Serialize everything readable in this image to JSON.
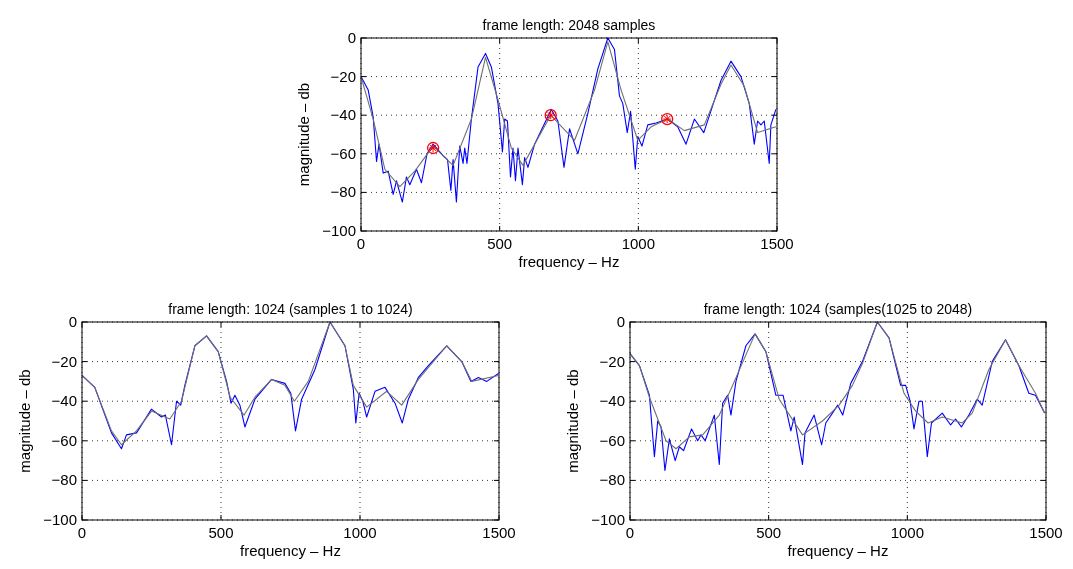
{
  "chart_data": [
    {
      "type": "line",
      "title": "frame length: 2048 samples",
      "xlabel": "frequency – Hz",
      "ylabel": "magnitude – db",
      "xlim": [
        0,
        1500
      ],
      "ylim": [
        -100,
        0
      ],
      "xticks": [
        0,
        500,
        1000,
        1500
      ],
      "yticks": [
        -100,
        -80,
        -60,
        -40,
        -20,
        0
      ],
      "grid": true,
      "series": [
        {
          "color": "#0000ff",
          "x": [
            0,
            26,
            44,
            56,
            65,
            80,
            98,
            116,
            128,
            149,
            164,
            176,
            200,
            218,
            238,
            260,
            296,
            312,
            324,
            332,
            344,
            356,
            368,
            374,
            382,
            398,
            422,
            449,
            470,
            494,
            510,
            518,
            528,
            539,
            548,
            557,
            566,
            582,
            590,
            602,
            626,
            686,
            710,
            732,
            752,
            782,
            818,
            854,
            890,
            914,
            932,
            944,
            960,
            972,
            989,
            998,
            1013,
            1034,
            1064,
            1106,
            1142,
            1172,
            1202,
            1236,
            1268,
            1298,
            1334,
            1370,
            1400,
            1418,
            1430,
            1442,
            1454,
            1472,
            1478,
            1496
          ],
          "values": [
            -20,
            -27,
            -41,
            -64,
            -55,
            -70,
            -69,
            -81,
            -74,
            -85,
            -72,
            -76,
            -68,
            -75,
            -60,
            -55,
            -61,
            -63,
            -79,
            -63,
            -85,
            -56,
            -65,
            -57,
            -65,
            -42,
            -15,
            -8,
            -15,
            -34,
            -59,
            -42,
            -43,
            -72,
            -57,
            -74,
            -57,
            -76,
            -62,
            -67,
            -55,
            -37,
            -43,
            -67,
            -47,
            -60,
            -39,
            -16,
            0,
            -6,
            -30,
            -34,
            -49,
            -38,
            -68,
            -51,
            -56,
            -45,
            -44,
            -42,
            -46,
            -55,
            -42,
            -49,
            -35,
            -22,
            -12,
            -20,
            -34,
            -55,
            -43,
            -45,
            -43,
            -65,
            -45,
            -37
          ]
        },
        {
          "color": "#707070",
          "x": [
            0,
            44,
            86,
            140,
            194,
            260,
            332,
            398,
            449,
            494,
            542,
            584,
            684,
            770,
            842,
            890,
            938,
            998,
            1046,
            1106,
            1166,
            1238,
            1298,
            1334,
            1382,
            1430,
            1496
          ],
          "values": [
            -20,
            -42,
            -68,
            -77,
            -69,
            -56,
            -66,
            -42,
            -10,
            -32,
            -57,
            -66,
            -40,
            -53,
            -27,
            -2,
            -27,
            -53,
            -46,
            -42,
            -48,
            -45,
            -24,
            -14,
            -25,
            -49,
            -46
          ]
        },
        {
          "type": "scatter",
          "color": "#ff0000",
          "marker": "circle",
          "x": [
            260,
            684,
            1104
          ],
          "values": [
            -57,
            -40,
            -42
          ]
        }
      ]
    },
    {
      "type": "line",
      "title": "frame length: 1024 (samples 1 to 1024)",
      "xlabel": "frequency – Hz",
      "ylabel": "magnitude – db",
      "xlim": [
        0,
        1500
      ],
      "ylim": [
        -100,
        0
      ],
      "xticks": [
        0,
        500,
        1000,
        1500
      ],
      "yticks": [
        -100,
        -80,
        -60,
        -40,
        -20,
        0
      ],
      "grid": true,
      "series": [
        {
          "color": "#0000ff",
          "x": [
            0,
            46,
            106,
            142,
            160,
            196,
            250,
            286,
            300,
            322,
            340,
            355,
            370,
            406,
            448,
            490,
            520,
            536,
            550,
            568,
            586,
            622,
            682,
            730,
            751,
            768,
            790,
            838,
            892,
            946,
            976,
            985,
            997,
            1010,
            1024,
            1054,
            1090,
            1126,
            1152,
            1174,
            1210,
            1246,
            1312,
            1366,
            1399,
            1426,
            1456,
            1498
          ],
          "values": [
            -27,
            -33,
            -56,
            -64,
            -57,
            -56,
            -44,
            -48,
            -47,
            -62,
            -40,
            -42,
            -32,
            -12,
            -7,
            -15,
            -30,
            -41,
            -37,
            -42,
            -53,
            -39,
            -29,
            -31,
            -36,
            -55,
            -39,
            -24,
            0,
            -12,
            -34,
            -51,
            -36,
            -40,
            -48,
            -35,
            -33,
            -41,
            -51,
            -39,
            -28,
            -22,
            -12,
            -20,
            -30,
            -28,
            -30,
            -26
          ]
        },
        {
          "color": "#707070",
          "x": [
            0,
            46,
            106,
            142,
            196,
            250,
            316,
            358,
            406,
            448,
            490,
            533,
            583,
            622,
            682,
            730,
            764,
            814,
            892,
            946,
            976,
            1024,
            1096,
            1150,
            1210,
            1312,
            1366,
            1402,
            1498
          ],
          "values": [
            -27,
            -33,
            -55,
            -62,
            -55,
            -45,
            -49,
            -40,
            -12,
            -7,
            -15,
            -38,
            -47,
            -38,
            -29,
            -32,
            -40,
            -30,
            0,
            -12,
            -32,
            -43,
            -35,
            -42,
            -29,
            -12,
            -20,
            -30,
            -27
          ]
        }
      ]
    },
    {
      "type": "line",
      "title": "frame length: 1024 (samples(1025 to 2048)",
      "xlabel": "frequency – Hz",
      "ylabel": "magnitude – db",
      "xlim": [
        0,
        1500
      ],
      "ylim": [
        -100,
        0
      ],
      "xticks": [
        0,
        500,
        1000,
        1500
      ],
      "yticks": [
        -100,
        -80,
        -60,
        -40,
        -20,
        0
      ],
      "grid": true,
      "series": [
        {
          "color": "#0000ff",
          "x": [
            0,
            34,
            70,
            88,
            100,
            112,
            126,
            142,
            163,
            178,
            193,
            222,
            244,
            256,
            271,
            304,
            322,
            334,
            352,
            364,
            382,
            418,
            451,
            490,
            526,
            552,
            580,
            592,
            622,
            631,
            664,
            691,
            706,
            730,
            749,
            767,
            796,
            838,
            892,
            934,
            976,
            994,
            1010,
            1024,
            1042,
            1054,
            1072,
            1087,
            1126,
            1156,
            1174,
            1195,
            1222,
            1252,
            1270,
            1306,
            1354,
            1402,
            1438,
            1462,
            1495
          ],
          "values": [
            -16,
            -22,
            -37,
            -68,
            -50,
            -53,
            -75,
            -59,
            -70,
            -63,
            -65,
            -54,
            -60,
            -57,
            -60,
            -47,
            -72,
            -41,
            -37,
            -47,
            -30,
            -12,
            -6,
            -15,
            -37,
            -37,
            -55,
            -48,
            -72,
            -56,
            -47,
            -62,
            -51,
            -46,
            -42,
            -47,
            -31,
            -20,
            0,
            -8,
            -32,
            -32,
            -40,
            -54,
            -40,
            -40,
            -68,
            -51,
            -46,
            -52,
            -49,
            -53,
            -47,
            -39,
            -42,
            -20,
            -9,
            -22,
            -36,
            -37,
            -46
          ]
        },
        {
          "color": "#707070",
          "x": [
            0,
            34,
            70,
            130,
            166,
            214,
            262,
            322,
            370,
            451,
            490,
            538,
            622,
            694,
            754,
            802,
            838,
            892,
            934,
            988,
            1030,
            1075,
            1126,
            1198,
            1234,
            1294,
            1354,
            1402,
            1462,
            1495
          ],
          "values": [
            -16,
            -22,
            -38,
            -60,
            -64,
            -58,
            -57,
            -47,
            -32,
            -6,
            -15,
            -39,
            -57,
            -50,
            -42,
            -32,
            -21,
            0,
            -8,
            -36,
            -45,
            -51,
            -48,
            -51,
            -46,
            -24,
            -9,
            -22,
            -36,
            -46
          ]
        }
      ]
    }
  ]
}
